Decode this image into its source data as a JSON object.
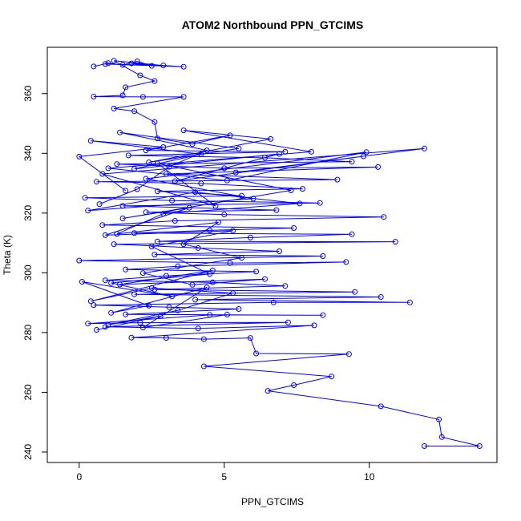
{
  "chart_data": {
    "type": "line",
    "title": "ATOM2 Northbound PPN_GTCIMS",
    "xlabel": "PPN_GTCIMS",
    "ylabel": "Theta (K)",
    "xlim": [
      -1.1,
      14.4
    ],
    "ylim": [
      236.5,
      375.5
    ],
    "x_ticks": [
      0,
      5,
      10
    ],
    "y_ticks": [
      240,
      260,
      280,
      300,
      320,
      340,
      360
    ],
    "grid": false,
    "legend": "none",
    "marker": "open-circle",
    "color": "#0000ff",
    "series": [
      {
        "points": [
          [
            0.5,
            369.1
          ],
          [
            1.0,
            370.2
          ],
          [
            1.5,
            369.6
          ],
          [
            2.0,
            370.8
          ],
          [
            2.5,
            369.3
          ],
          [
            1.8,
            370.1
          ],
          [
            3.6,
            369.0
          ],
          [
            0.9,
            369.9
          ],
          [
            2.9,
            369.4
          ],
          [
            1.2,
            371.0
          ],
          [
            2.1,
            366.1
          ],
          [
            2.6,
            364.2
          ],
          [
            1.6,
            362.1
          ],
          [
            1.5,
            359.4
          ],
          [
            0.5,
            359.0
          ],
          [
            2.2,
            358.9
          ],
          [
            3.6,
            358.9
          ],
          [
            1.2,
            355.0
          ],
          [
            1.9,
            354.1
          ],
          [
            2.6,
            350.5
          ],
          [
            2.7,
            345.0
          ],
          [
            3.9,
            343.1
          ],
          [
            5.2,
            346.0
          ],
          [
            2.3,
            341.0
          ],
          [
            7.1,
            340.5
          ],
          [
            1.7,
            339.3
          ],
          [
            6.4,
            338.5
          ],
          [
            9.4,
            337.2
          ],
          [
            1.3,
            336.4
          ],
          [
            5.0,
            335.0
          ],
          [
            10.3,
            335.4
          ],
          [
            3.0,
            333.1
          ],
          [
            8.9,
            331.2
          ],
          [
            0.6,
            330.5
          ],
          [
            4.2,
            329.9
          ],
          [
            7.7,
            328.1
          ],
          [
            2.7,
            327.3
          ],
          [
            5.6,
            325.8
          ],
          [
            0.2,
            325.1
          ],
          [
            3.2,
            324.2
          ],
          [
            8.3,
            323.4
          ],
          [
            1.5,
            322.4
          ],
          [
            6.8,
            321.0
          ],
          [
            2.3,
            320.3
          ],
          [
            5.0,
            319.5
          ],
          [
            10.5,
            318.7
          ],
          [
            3.3,
            317.4
          ],
          [
            0.8,
            316.0
          ],
          [
            7.4,
            315.0
          ],
          [
            4.5,
            314.2
          ],
          [
            1.9,
            313.3
          ],
          [
            9.4,
            312.9
          ],
          [
            5.9,
            311.8
          ],
          [
            2.7,
            310.5
          ],
          [
            10.9,
            310.4
          ],
          [
            1.2,
            309.6
          ],
          [
            4.1,
            308.3
          ],
          [
            6.9,
            307.2
          ],
          [
            2.6,
            306.1
          ],
          [
            8.4,
            305.6
          ],
          [
            0.0,
            304.1
          ],
          [
            5.2,
            303.3
          ],
          [
            9.2,
            303.6
          ],
          [
            3.4,
            302.2
          ],
          [
            1.6,
            301.1
          ],
          [
            6.1,
            300.4
          ],
          [
            3.0,
            299.0
          ],
          [
            0.9,
            297.5
          ],
          [
            4.6,
            296.8
          ],
          [
            7.1,
            295.6
          ],
          [
            2.6,
            294.4
          ],
          [
            9.5,
            293.6
          ],
          [
            1.9,
            292.8
          ],
          [
            10.4,
            291.9
          ],
          [
            4.0,
            291.0
          ],
          [
            11.4,
            290.1
          ],
          [
            6.7,
            290.1
          ],
          [
            0.5,
            289.2
          ],
          [
            3.1,
            288.5
          ],
          [
            5.5,
            287.9
          ],
          [
            1.6,
            286.1
          ],
          [
            8.4,
            285.8
          ],
          [
            4.5,
            285.9
          ],
          [
            0.3,
            283.0
          ],
          [
            2.1,
            283.3
          ],
          [
            7.2,
            283.4
          ],
          [
            0.9,
            281.9
          ],
          [
            4.1,
            281.4
          ],
          [
            8.1,
            282.4
          ],
          [
            1.8,
            278.3
          ],
          [
            3.0,
            278.2
          ],
          [
            4.3,
            277.8
          ],
          [
            5.9,
            278.2
          ],
          [
            6.1,
            273.0
          ],
          [
            9.3,
            272.8
          ],
          [
            4.3,
            268.7
          ],
          [
            8.7,
            265.3
          ],
          [
            7.4,
            262.4
          ],
          [
            6.5,
            260.5
          ],
          [
            10.4,
            255.3
          ],
          [
            12.4,
            250.9
          ],
          [
            12.5,
            245.0
          ],
          [
            13.8,
            242.0
          ],
          [
            11.9,
            242.0
          ]
        ]
      },
      {
        "points": [
          [
            0.7,
            323.0
          ],
          [
            2.0,
            328.0
          ],
          [
            3.1,
            335.5
          ],
          [
            4.4,
            341.0
          ],
          [
            1.4,
            347.0
          ],
          [
            5.5,
            341.6
          ],
          [
            2.4,
            337.0
          ],
          [
            6.6,
            344.8
          ],
          [
            3.6,
            347.7
          ],
          [
            8.0,
            340.5
          ],
          [
            1.0,
            335.0
          ],
          [
            5.1,
            330.9
          ],
          [
            9.9,
            340.4
          ],
          [
            2.3,
            331.5
          ],
          [
            6.0,
            324.8
          ],
          [
            0.3,
            320.8
          ],
          [
            4.0,
            327.0
          ],
          [
            7.6,
            323.2
          ],
          [
            2.9,
            319.8
          ],
          [
            1.3,
            313.0
          ],
          [
            4.8,
            316.9
          ],
          [
            3.6,
            309.6
          ],
          [
            5.6,
            305.0
          ],
          [
            2.2,
            299.9
          ],
          [
            3.9,
            296.0
          ],
          [
            6.4,
            297.9
          ],
          [
            1.4,
            296.1
          ],
          [
            4.6,
            300.8
          ],
          [
            0.4,
            290.5
          ],
          [
            2.5,
            294.9
          ],
          [
            5.3,
            293.2
          ],
          [
            3.4,
            287.4
          ],
          [
            1.0,
            282.6
          ],
          [
            2.8,
            285.5
          ],
          [
            0.6,
            280.9
          ]
        ]
      },
      {
        "points": [
          [
            1.6,
            327.5
          ],
          [
            0.0,
            338.9
          ],
          [
            2.9,
            342.1
          ],
          [
            0.4,
            344.2
          ],
          [
            4.2,
            339.7
          ],
          [
            1.9,
            334.8
          ],
          [
            6.9,
            339.8
          ],
          [
            3.3,
            330.7
          ],
          [
            9.8,
            339.0
          ],
          [
            5.4,
            333.6
          ],
          [
            11.9,
            341.6
          ],
          [
            0.8,
            333.1
          ],
          [
            4.7,
            322.4
          ],
          [
            2.7,
            336.6
          ],
          [
            7.3,
            327.6
          ],
          [
            1.5,
            318.2
          ],
          [
            3.8,
            321.8
          ],
          [
            0.9,
            312.6
          ],
          [
            5.3,
            314.1
          ],
          [
            2.5,
            308.8
          ],
          [
            4.5,
            299.6
          ],
          [
            1.1,
            296.6
          ],
          [
            3.2,
            292.1
          ],
          [
            0.1,
            297.0
          ],
          [
            2.4,
            289.0
          ],
          [
            1.1,
            286.6
          ],
          [
            4.4,
            295.1
          ],
          [
            2.2,
            281.7
          ],
          [
            5.1,
            286.0
          ]
        ]
      }
    ]
  }
}
